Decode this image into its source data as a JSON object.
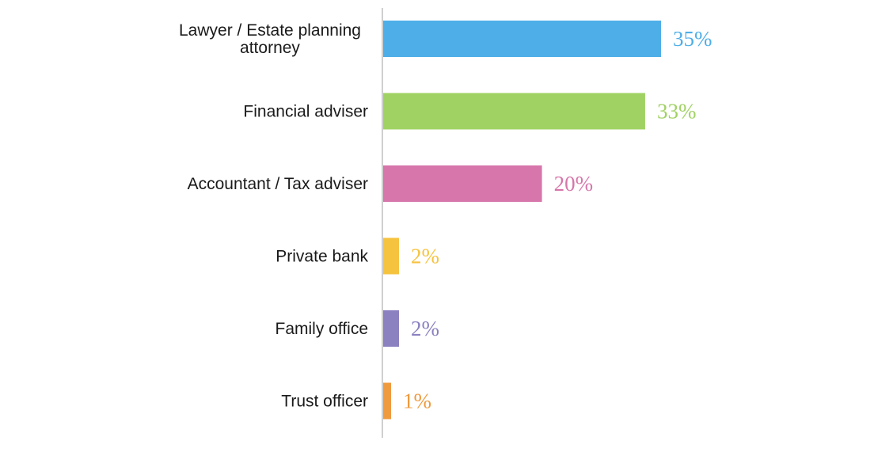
{
  "chart_data": {
    "type": "bar",
    "orientation": "horizontal",
    "categories": [
      [
        "Lawyer / Estate planning",
        "attorney"
      ],
      [
        "Financial adviser"
      ],
      [
        "Accountant / Tax adviser"
      ],
      [
        "Private bank"
      ],
      [
        "Family office"
      ],
      [
        "Trust officer"
      ]
    ],
    "values": [
      35,
      33,
      20,
      2,
      2,
      1
    ],
    "value_labels": [
      "35%",
      "33%",
      "20%",
      "2%",
      "2%",
      "1%"
    ],
    "value_unit": "%",
    "colors": [
      "#4eaee8",
      "#a0d263",
      "#d676aa",
      "#f6c33f",
      "#8b80c0",
      "#ef9a3e"
    ],
    "title": "",
    "xlabel": "",
    "ylabel": "",
    "xlim": [
      0,
      35
    ],
    "grid": false,
    "legend": "none"
  }
}
